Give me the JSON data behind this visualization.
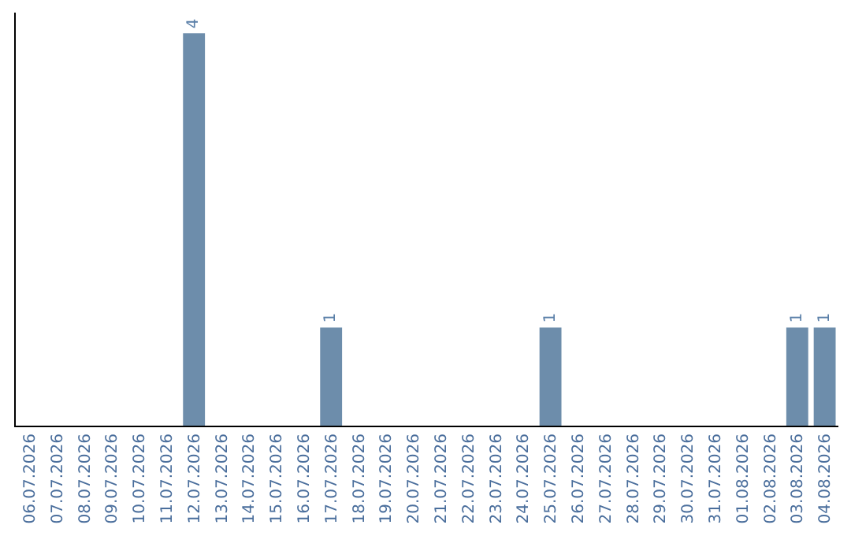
{
  "chart_data": {
    "type": "bar",
    "categories": [
      "06.07.2026",
      "07.07.2026",
      "08.07.2026",
      "09.07.2026",
      "10.07.2026",
      "11.07.2026",
      "12.07.2026",
      "13.07.2026",
      "14.07.2026",
      "15.07.2026",
      "16.07.2026",
      "17.07.2026",
      "18.07.2026",
      "19.07.2026",
      "20.07.2026",
      "21.07.2026",
      "22.07.2026",
      "23.07.2026",
      "24.07.2026",
      "25.07.2026",
      "26.07.2026",
      "27.07.2026",
      "28.07.2026",
      "29.07.2026",
      "30.07.2026",
      "31.07.2026",
      "01.08.2026",
      "02.08.2026",
      "03.08.2026",
      "04.08.2026"
    ],
    "values": [
      0,
      0,
      0,
      0,
      0,
      0,
      4,
      0,
      0,
      0,
      0,
      1,
      0,
      0,
      0,
      0,
      0,
      0,
      0,
      1,
      0,
      0,
      0,
      0,
      0,
      0,
      0,
      0,
      1,
      1
    ],
    "value_labels": [
      null,
      null,
      null,
      null,
      null,
      null,
      "4",
      null,
      null,
      null,
      null,
      "1",
      null,
      null,
      null,
      null,
      null,
      null,
      null,
      "1",
      null,
      null,
      null,
      null,
      null,
      null,
      null,
      null,
      "1",
      "1"
    ],
    "color": "#6d8dab",
    "tick_labels": "x",
    "grid": false,
    "legend": false
  }
}
